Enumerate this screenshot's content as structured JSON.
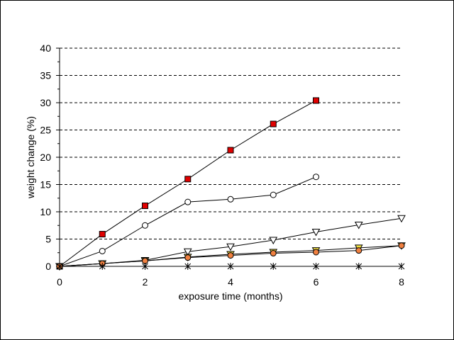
{
  "chart_data": {
    "type": "line",
    "title": "",
    "xlabel": "exposure time (months)",
    "ylabel": "weight change (%)",
    "xlim": [
      0,
      8
    ],
    "ylim": [
      0,
      40
    ],
    "x_ticks": [
      "0",
      "2",
      "4",
      "6",
      "8"
    ],
    "y_ticks": [
      "0",
      "5",
      "10",
      "15",
      "20",
      "25",
      "30",
      "35",
      "40"
    ],
    "grid": "horizontal dashed",
    "legend": "none",
    "series": [
      {
        "marker": "square",
        "color": "#e00000",
        "x": [
          0,
          1,
          2,
          3,
          4,
          5,
          6
        ],
        "y": [
          0,
          5.9,
          11.1,
          16.0,
          21.3,
          26.1,
          30.4
        ]
      },
      {
        "marker": "circle-open",
        "color": "#ffffff",
        "x": [
          0,
          1,
          2,
          3,
          4,
          5,
          6
        ],
        "y": [
          0,
          2.8,
          7.5,
          11.8,
          12.3,
          13.1,
          16.4
        ]
      },
      {
        "marker": "triangle-down-open",
        "color": "#ffffff",
        "x": [
          0,
          1,
          2,
          3,
          4,
          5,
          6,
          7,
          8
        ],
        "y": [
          0,
          0.5,
          1.1,
          2.7,
          3.6,
          4.8,
          6.3,
          7.6,
          8.8
        ]
      },
      {
        "marker": "triangle-down",
        "color": "#f0e040",
        "x": [
          0,
          1,
          2,
          3,
          4,
          5,
          6,
          7,
          8
        ],
        "y": [
          0,
          0.5,
          1.0,
          1.7,
          2.2,
          2.6,
          2.9,
          3.4,
          3.8
        ]
      },
      {
        "marker": "circle",
        "color": "#f08040",
        "x": [
          0,
          1,
          2,
          3,
          4,
          5,
          6,
          7,
          8
        ],
        "y": [
          0,
          0.5,
          1.0,
          1.6,
          2.0,
          2.4,
          2.6,
          2.9,
          3.8
        ]
      },
      {
        "marker": "star",
        "color": "#000000",
        "x": [
          0,
          1,
          2,
          3,
          4,
          5,
          6,
          7,
          8
        ],
        "y": [
          0,
          0,
          0,
          0,
          0,
          0,
          0,
          0,
          0
        ]
      }
    ]
  }
}
